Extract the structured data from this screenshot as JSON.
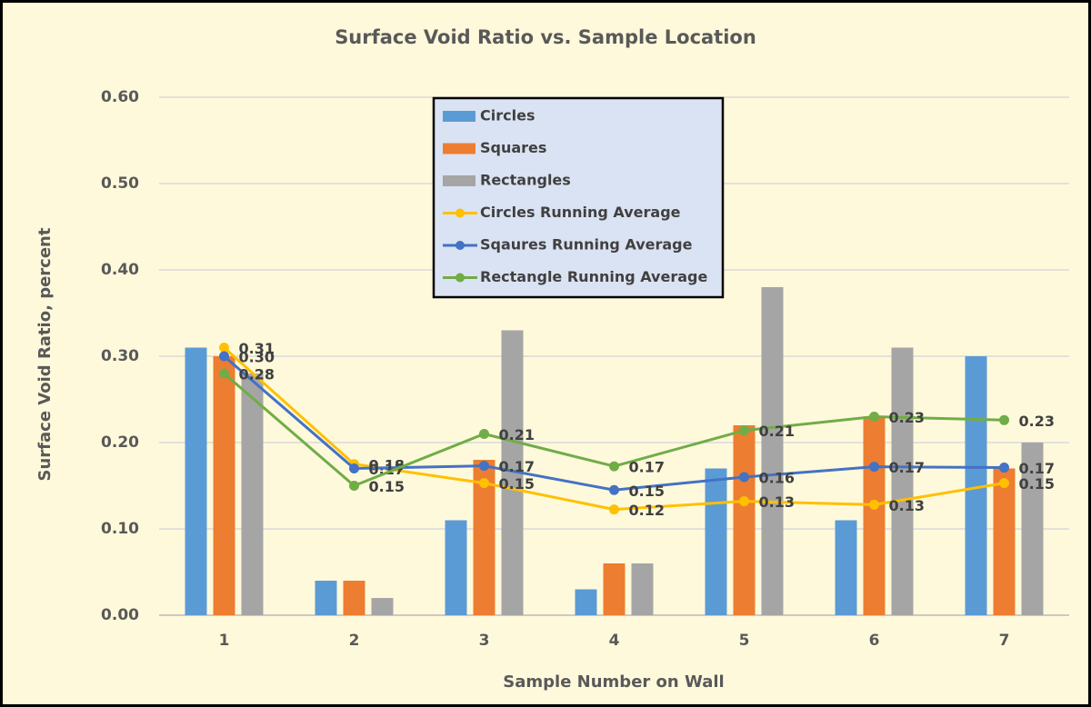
{
  "chart_data": {
    "type": "bar_line",
    "title": "Surface Void Ratio vs. Sample Location",
    "x_label": "Sample Number on Wall",
    "y_label": "Surface Void Ratio, percent",
    "categories": [
      "1",
      "2",
      "3",
      "4",
      "5",
      "6",
      "7"
    ],
    "ylim": [
      0,
      0.6
    ],
    "yticks": [
      {
        "value": 0,
        "label": "0.00"
      },
      {
        "value": 0.1,
        "label": "0.10"
      },
      {
        "value": 0.2,
        "label": "0.20"
      },
      {
        "value": 0.3,
        "label": "0.30"
      },
      {
        "value": 0.4,
        "label": "0.40"
      },
      {
        "value": 0.5,
        "label": "0.50"
      },
      {
        "value": 0.6,
        "label": "0.60"
      }
    ],
    "grid": true,
    "series": [
      {
        "name": "Circles",
        "kind": "bar",
        "color": "#5b9bd5",
        "values": [
          0.31,
          0.04,
          0.11,
          0.03,
          0.17,
          0.11,
          0.3
        ]
      },
      {
        "name": "Squares",
        "kind": "bar",
        "color": "#ed7d31",
        "values": [
          0.3,
          0.04,
          0.18,
          0.06,
          0.22,
          0.23,
          0.17
        ]
      },
      {
        "name": "Rectangles",
        "kind": "bar",
        "color": "#a5a5a5",
        "values": [
          0.28,
          0.02,
          0.33,
          0.06,
          0.38,
          0.31,
          0.2
        ]
      },
      {
        "name": "Circles Running Average",
        "kind": "line",
        "color": "#ffc000",
        "values": [
          0.31,
          0.175,
          0.153,
          0.1225,
          0.132,
          0.128,
          0.153
        ],
        "value_labels": [
          "0.31",
          "0.18",
          "0.15",
          "0.12",
          "0.13",
          "0.13",
          "0.15"
        ]
      },
      {
        "name": "Sqaures Running Average",
        "kind": "line",
        "color": "#4472c4",
        "values": [
          0.3,
          0.17,
          0.173,
          0.145,
          0.16,
          0.172,
          0.171
        ],
        "value_labels": [
          "0.30",
          "0.17",
          "0.17",
          "0.15",
          "0.16",
          "0.17",
          "0.17"
        ]
      },
      {
        "name": "Rectangle Running Average",
        "kind": "line",
        "color": "#70ad47",
        "values": [
          0.28,
          0.15,
          0.21,
          0.1725,
          0.214,
          0.23,
          0.226
        ],
        "value_labels": [
          "0.28",
          "0.15",
          "0.21",
          "0.17",
          "0.21",
          "0.23",
          "0.23"
        ]
      }
    ]
  }
}
